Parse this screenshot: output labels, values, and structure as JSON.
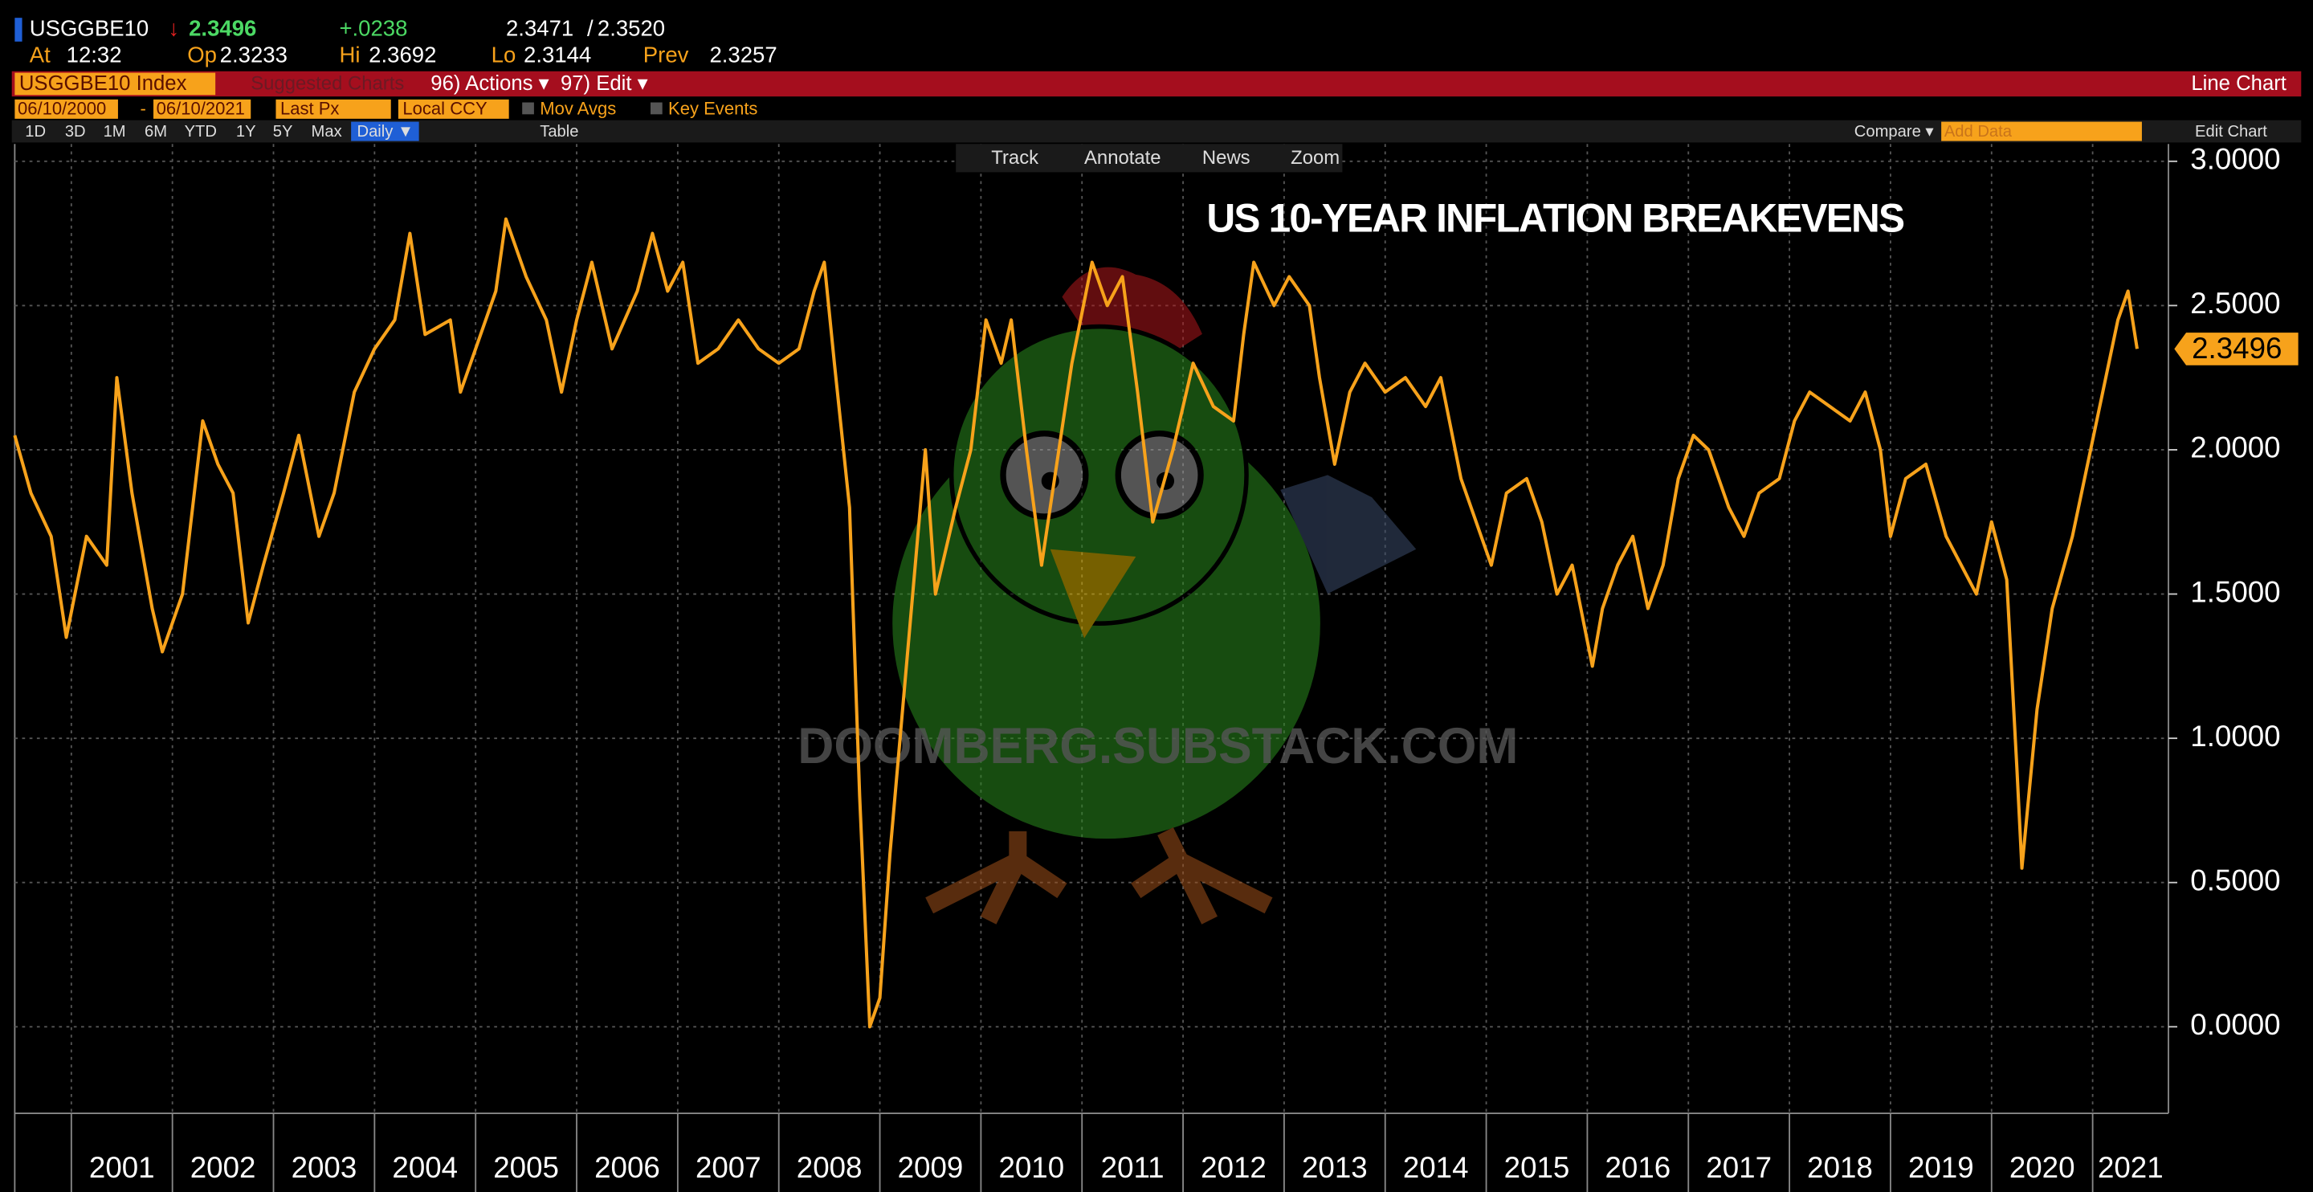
{
  "chart_data": {
    "type": "line",
    "title": "US 10-YEAR INFLATION BREAKEVENS",
    "watermark": "DOOMBERG.SUBSTACK.COM",
    "x": [
      2000.44,
      2000.6,
      2000.8,
      2000.95,
      2001.15,
      2001.35,
      2001.45,
      2001.6,
      2001.8,
      2001.9,
      2002.1,
      2002.3,
      2002.45,
      2002.6,
      2002.75,
      2002.9,
      2003.1,
      2003.25,
      2003.45,
      2003.6,
      2003.8,
      2004.0,
      2004.2,
      2004.35,
      2004.5,
      2004.75,
      2004.85,
      2005.0,
      2005.2,
      2005.3,
      2005.5,
      2005.7,
      2005.85,
      2006.0,
      2006.15,
      2006.35,
      2006.6,
      2006.75,
      2006.9,
      2007.05,
      2007.2,
      2007.4,
      2007.6,
      2007.8,
      2008.0,
      2008.2,
      2008.35,
      2008.45,
      2008.55,
      2008.7,
      2008.8,
      2008.9,
      2009.0,
      2009.1,
      2009.3,
      2009.45,
      2009.55,
      2009.75,
      2009.9,
      2010.05,
      2010.2,
      2010.3,
      2010.45,
      2010.6,
      2010.75,
      2010.9,
      2011.1,
      2011.25,
      2011.4,
      2011.55,
      2011.7,
      2011.9,
      2012.1,
      2012.3,
      2012.5,
      2012.6,
      2012.7,
      2012.9,
      2013.05,
      2013.25,
      2013.35,
      2013.5,
      2013.65,
      2013.8,
      2014.0,
      2014.2,
      2014.4,
      2014.55,
      2014.75,
      2014.9,
      2015.05,
      2015.2,
      2015.4,
      2015.55,
      2015.7,
      2015.85,
      2016.05,
      2016.15,
      2016.3,
      2016.45,
      2016.6,
      2016.75,
      2016.9,
      2017.05,
      2017.2,
      2017.4,
      2017.55,
      2017.7,
      2017.9,
      2018.05,
      2018.2,
      2018.4,
      2018.6,
      2018.75,
      2018.9,
      2019.0,
      2019.15,
      2019.35,
      2019.55,
      2019.7,
      2019.85,
      2020.0,
      2020.15,
      2020.25,
      2020.3,
      2020.45,
      2020.6,
      2020.8,
      2020.95,
      2021.1,
      2021.25,
      2021.35,
      2021.44
    ],
    "series": [
      {
        "name": "USGGBE10 Index",
        "color": "#f7a21b",
        "values": [
          2.05,
          1.85,
          1.7,
          1.35,
          1.7,
          1.6,
          2.25,
          1.85,
          1.45,
          1.3,
          1.5,
          2.1,
          1.95,
          1.85,
          1.4,
          1.6,
          1.85,
          2.05,
          1.7,
          1.85,
          2.2,
          2.35,
          2.45,
          2.75,
          2.4,
          2.45,
          2.2,
          2.35,
          2.55,
          2.8,
          2.6,
          2.45,
          2.2,
          2.45,
          2.65,
          2.35,
          2.55,
          2.75,
          2.55,
          2.65,
          2.3,
          2.35,
          2.45,
          2.35,
          2.3,
          2.35,
          2.55,
          2.65,
          2.3,
          1.8,
          0.8,
          0,
          0.1,
          0.6,
          1.4,
          2,
          1.5,
          1.8,
          2,
          2.45,
          2.3,
          2.45,
          2,
          1.6,
          1.95,
          2.3,
          2.65,
          2.5,
          2.6,
          2.2,
          1.75,
          2,
          2.3,
          2.15,
          2.1,
          2.4,
          2.65,
          2.5,
          2.6,
          2.5,
          2.25,
          1.95,
          2.2,
          2.3,
          2.2,
          2.25,
          2.15,
          2.25,
          1.9,
          1.75,
          1.6,
          1.85,
          1.9,
          1.75,
          1.5,
          1.6,
          1.25,
          1.45,
          1.6,
          1.7,
          1.45,
          1.6,
          1.9,
          2.05,
          2,
          1.8,
          1.7,
          1.85,
          1.9,
          2.1,
          2.2,
          2.15,
          2.1,
          2.2,
          2,
          1.7,
          1.9,
          1.95,
          1.7,
          1.6,
          1.5,
          1.75,
          1.55,
          0.9,
          0.55,
          1.1,
          1.45,
          1.7,
          1.95,
          2.2,
          2.45,
          2.55,
          2.35
        ]
      }
    ],
    "last_value": 2.3496,
    "last_value_label": "2.3496",
    "xlim": [
      2000.44,
      2021.75
    ],
    "xticks": [
      2001,
      2002,
      2003,
      2004,
      2005,
      2006,
      2007,
      2008,
      2009,
      2010,
      2011,
      2012,
      2013,
      2014,
      2015,
      2016,
      2017,
      2018,
      2019,
      2020,
      2021
    ],
    "ylim": [
      -0.3,
      3.06
    ],
    "yticks": [
      {
        "value": 0,
        "label": "0.0000"
      },
      {
        "value": 0.5,
        "label": "0.5000"
      },
      {
        "value": 1,
        "label": "1.0000"
      },
      {
        "value": 1.5,
        "label": "1.5000"
      },
      {
        "value": 2,
        "label": "2.0000"
      },
      {
        "value": 2.5,
        "label": "2.5000"
      },
      {
        "value": 3,
        "label": "3.0000"
      }
    ],
    "grid": true
  },
  "ui": {
    "ticker": "USGGBE10",
    "arrow": "↓",
    "last": "2.3496",
    "change": "+.0238",
    "bid": "2.3471",
    "slash": "/",
    "ask": "2.3520",
    "at_label": "At",
    "at": "12:32",
    "open_label": "Op",
    "open": "2.3233",
    "high_label": "Hi",
    "high": "2.3692",
    "low_label": "Lo",
    "low": "2.3144",
    "prev_label": "Prev",
    "prev": "2.3257",
    "security": "USGGBE10 Index",
    "suggested": "Suggested Charts",
    "actions": "96) Actions ▾",
    "edit": "97) Edit ▾",
    "chart_kind": "Line Chart",
    "start_date": "06/10/2000",
    "dash": "-",
    "end_date": "06/10/2021",
    "field": "Last Px",
    "currency": "Local CCY",
    "mov_avgs": "Mov Avgs",
    "key_events": "Key Events",
    "periods": [
      "1D",
      "3D",
      "1M",
      "6M",
      "YTD",
      "1Y",
      "5Y",
      "Max"
    ],
    "frequency": "Daily ▼",
    "table": "Table",
    "compare": "Compare ▾",
    "add_data": "Add Data",
    "edit_chart": "Edit Chart",
    "tools": [
      "Track",
      "Annotate",
      "News",
      "Zoom"
    ]
  }
}
